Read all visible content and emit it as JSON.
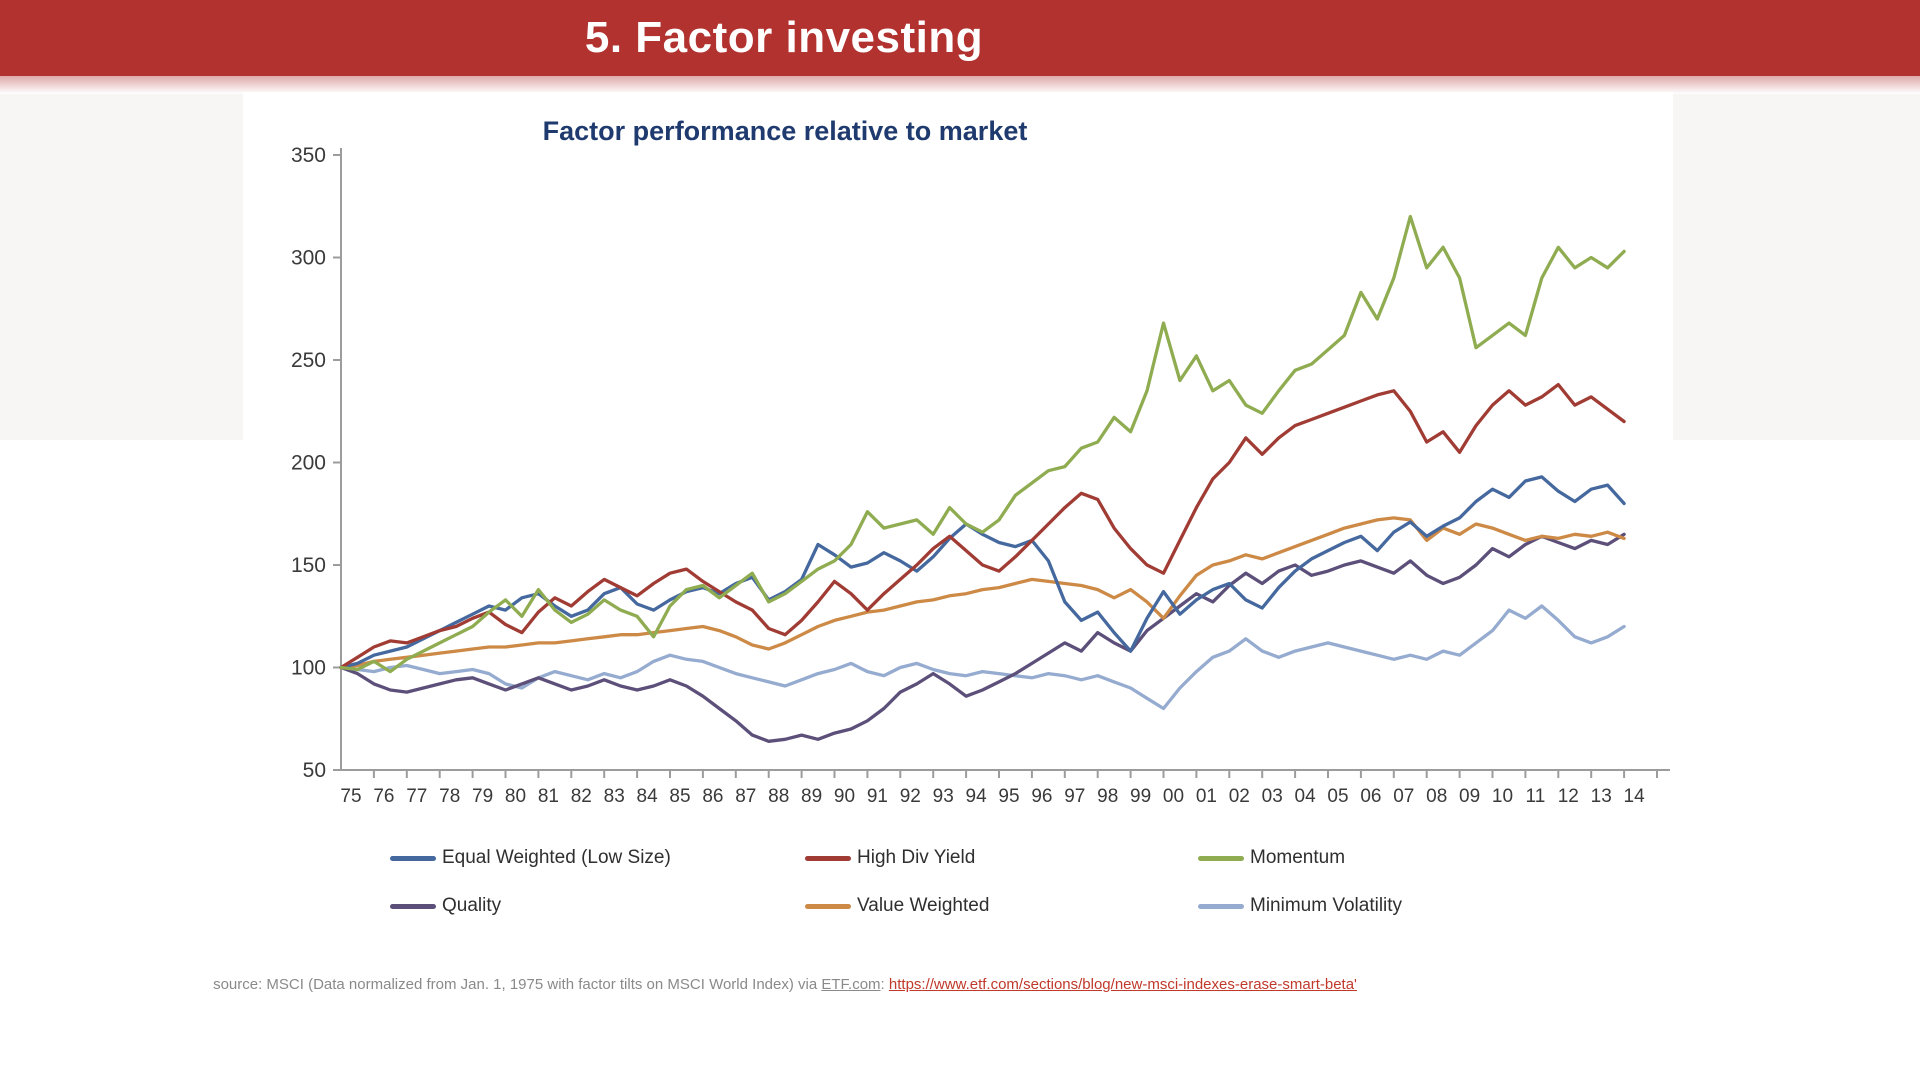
{
  "header": {
    "title": "5. Factor investing"
  },
  "chart_data": {
    "type": "line",
    "title": "Factor performance relative to market",
    "xlabel": "",
    "ylabel": "",
    "x_start": 1975,
    "x_step": 0.5,
    "xlim": [
      1975,
      2015
    ],
    "ylim": [
      50,
      350
    ],
    "yticks": [
      50,
      100,
      150,
      200,
      250,
      300,
      350
    ],
    "xtick_labels": [
      "75",
      "76",
      "77",
      "78",
      "79",
      "80",
      "81",
      "82",
      "83",
      "84",
      "85",
      "86",
      "87",
      "88",
      "89",
      "90",
      "91",
      "92",
      "93",
      "94",
      "95",
      "96",
      "97",
      "98",
      "99",
      "00",
      "01",
      "02",
      "03",
      "04",
      "05",
      "06",
      "07",
      "08",
      "09",
      "10",
      "11",
      "12",
      "13",
      "14"
    ],
    "grid": false,
    "legend_position": "bottom",
    "series": [
      {
        "id": "equal-weighted",
        "name": "Equal Weighted (Low Size)",
        "color": "#45699E",
        "values": [
          100,
          102,
          106,
          108,
          110,
          114,
          118,
          122,
          126,
          130,
          128,
          134,
          136,
          130,
          125,
          128,
          136,
          139,
          131,
          128,
          133,
          137,
          139,
          136,
          141,
          144,
          133,
          137,
          143,
          160,
          155,
          149,
          151,
          156,
          152,
          147,
          154,
          163,
          170,
          165,
          161,
          159,
          162,
          152,
          132,
          123,
          127,
          117,
          108,
          124,
          137,
          126,
          133,
          138,
          141,
          133,
          129,
          139,
          147,
          153,
          157,
          161,
          164,
          157,
          166,
          171,
          164,
          169,
          173,
          181,
          187,
          183,
          191,
          193,
          186,
          181,
          187,
          189,
          180
        ]
      },
      {
        "id": "high-div-yield",
        "name": "High Div Yield",
        "color": "#A03C34",
        "values": [
          100,
          105,
          110,
          113,
          112,
          115,
          118,
          120,
          124,
          127,
          121,
          117,
          127,
          134,
          130,
          137,
          143,
          139,
          135,
          141,
          146,
          148,
          142,
          137,
          132,
          128,
          119,
          116,
          123,
          132,
          142,
          136,
          128,
          136,
          143,
          150,
          158,
          164,
          157,
          150,
          147,
          154,
          162,
          170,
          178,
          185,
          182,
          168,
          158,
          150,
          146,
          162,
          178,
          192,
          200,
          212,
          204,
          212,
          218,
          221,
          224,
          227,
          230,
          233,
          235,
          225,
          210,
          215,
          205,
          218,
          228,
          235,
          228,
          232,
          238,
          228,
          232,
          226,
          220
        ]
      },
      {
        "id": "momentum",
        "name": "Momentum",
        "color": "#8FAC51",
        "values": [
          100,
          99,
          103,
          98,
          104,
          108,
          112,
          116,
          120,
          127,
          133,
          125,
          138,
          128,
          122,
          126,
          133,
          128,
          125,
          115,
          130,
          138,
          140,
          134,
          140,
          146,
          132,
          136,
          142,
          148,
          152,
          160,
          176,
          168,
          170,
          172,
          165,
          178,
          170,
          166,
          172,
          184,
          190,
          196,
          198,
          207,
          210,
          222,
          215,
          235,
          268,
          240,
          252,
          235,
          240,
          228,
          224,
          235,
          245,
          248,
          255,
          262,
          283,
          270,
          290,
          320,
          295,
          305,
          290,
          256,
          262,
          268,
          262,
          290,
          305,
          295,
          300,
          295,
          303
        ]
      },
      {
        "id": "quality",
        "name": "Quality",
        "color": "#5C4F79",
        "values": [
          100,
          97,
          92,
          89,
          88,
          90,
          92,
          94,
          95,
          92,
          89,
          92,
          95,
          92,
          89,
          91,
          94,
          91,
          89,
          91,
          94,
          91,
          86,
          80,
          74,
          67,
          64,
          65,
          67,
          65,
          68,
          70,
          74,
          80,
          88,
          92,
          97,
          92,
          86,
          89,
          93,
          97,
          102,
          107,
          112,
          108,
          117,
          112,
          108,
          118,
          124,
          130,
          136,
          132,
          140,
          146,
          141,
          147,
          150,
          145,
          147,
          150,
          152,
          149,
          146,
          152,
          145,
          141,
          144,
          150,
          158,
          154,
          160,
          164,
          161,
          158,
          162,
          160,
          165
        ]
      },
      {
        "id": "value-weighted",
        "name": "Value Weighted",
        "color": "#CD8A46",
        "values": [
          100,
          101,
          103,
          104,
          105,
          106,
          107,
          108,
          109,
          110,
          110,
          111,
          112,
          112,
          113,
          114,
          115,
          116,
          116,
          117,
          118,
          119,
          120,
          118,
          115,
          111,
          109,
          112,
          116,
          120,
          123,
          125,
          127,
          128,
          130,
          132,
          133,
          135,
          136,
          138,
          139,
          141,
          143,
          142,
          141,
          140,
          138,
          134,
          138,
          132,
          124,
          135,
          145,
          150,
          152,
          155,
          153,
          156,
          159,
          162,
          165,
          168,
          170,
          172,
          173,
          172,
          162,
          168,
          165,
          170,
          168,
          165,
          162,
          164,
          163,
          165,
          164,
          166,
          163
        ]
      },
      {
        "id": "minimum-volatility",
        "name": "Minimum Volatility",
        "color": "#95ABCF",
        "values": [
          100,
          99,
          98,
          100,
          101,
          99,
          97,
          98,
          99,
          97,
          92,
          90,
          95,
          98,
          96,
          94,
          97,
          95,
          98,
          103,
          106,
          104,
          103,
          100,
          97,
          95,
          93,
          91,
          94,
          97,
          99,
          102,
          98,
          96,
          100,
          102,
          99,
          97,
          96,
          98,
          97,
          96,
          95,
          97,
          96,
          94,
          96,
          93,
          90,
          85,
          80,
          90,
          98,
          105,
          108,
          114,
          108,
          105,
          108,
          110,
          112,
          110,
          108,
          106,
          104,
          106,
          104,
          108,
          106,
          112,
          118,
          128,
          124,
          130,
          123,
          115,
          112,
          115,
          120
        ]
      }
    ]
  },
  "source": {
    "prefix": "source: MSCI (Data normalized from Jan. 1, 1975 with factor tilts on MSCI World Index) via ",
    "etf_label": "ETF.com",
    "separator": ": ",
    "link_text": "https://www.etf.com/sections/blog/new-msci-indexes-erase-smart-beta'"
  }
}
